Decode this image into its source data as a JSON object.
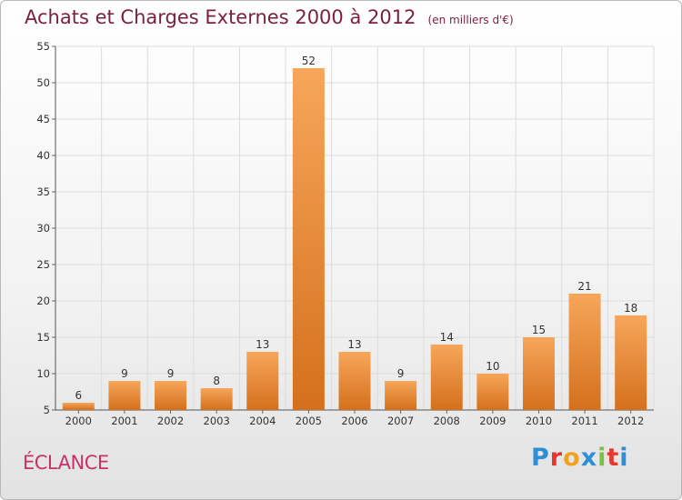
{
  "header": {
    "title": "Achats et Charges Externes 2000 à 2012",
    "subtitle": "(en milliers d'€)"
  },
  "commune": "ÉCLANCE",
  "logo": {
    "letters": [
      {
        "ch": "P",
        "color": "#2f8fd6"
      },
      {
        "ch": "r",
        "color": "#e5372c"
      },
      {
        "ch": "o",
        "color": "#f2a31b"
      },
      {
        "ch": "x",
        "color": "#2f8fd6"
      },
      {
        "ch": "i",
        "color": "#7cc242"
      },
      {
        "ch": "t",
        "color": "#e5372c"
      },
      {
        "ch": "i",
        "color": "#2f8fd6"
      }
    ]
  },
  "chart_data": {
    "type": "bar",
    "title": "Achats et Charges Externes 2000 à 2012",
    "subtitle": "(en milliers d'€)",
    "categories": [
      "2000",
      "2001",
      "2002",
      "2003",
      "2004",
      "2005",
      "2006",
      "2007",
      "2008",
      "2009",
      "2010",
      "2011",
      "2012"
    ],
    "values": [
      6,
      9,
      9,
      8,
      13,
      52,
      13,
      9,
      14,
      10,
      15,
      21,
      18
    ],
    "ylim": [
      5,
      55
    ],
    "yticks": [
      5,
      10,
      15,
      20,
      25,
      30,
      35,
      40,
      45,
      50,
      55
    ],
    "grid": true,
    "legend": "none",
    "bar_color_top": "#f7a65a",
    "bar_color_bottom": "#d4701c"
  }
}
